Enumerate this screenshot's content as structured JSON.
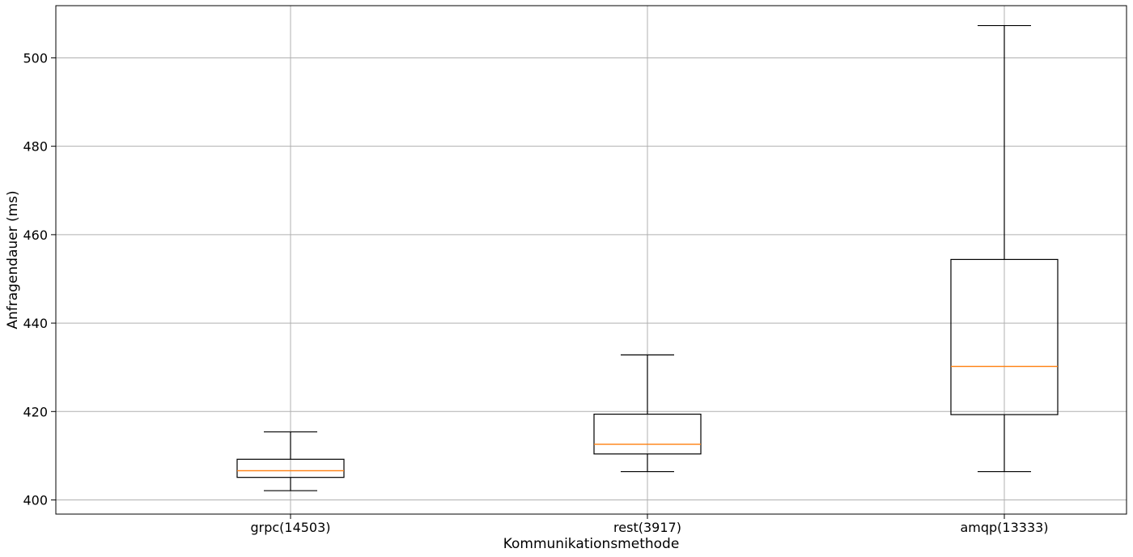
{
  "chart_data": {
    "type": "boxplot",
    "title": "",
    "xlabel": "Kommunikationsmethode",
    "ylabel": "Anfragendauer (ms)",
    "ylim": [
      396.8,
      511.8
    ],
    "yticks": [
      400,
      420,
      440,
      460,
      480,
      500
    ],
    "grid": true,
    "categories": [
      "grpc(14503)",
      "rest(3917)",
      "amqp(13333)"
    ],
    "boxes": [
      {
        "whisker_low": 402.1,
        "q1": 405.1,
        "median": 406.6,
        "q3": 409.2,
        "whisker_high": 415.4
      },
      {
        "whisker_low": 406.4,
        "q1": 410.4,
        "median": 412.6,
        "q3": 419.4,
        "whisker_high": 432.8
      },
      {
        "whisker_low": 406.4,
        "q1": 419.3,
        "median": 430.2,
        "q3": 454.4,
        "whisker_high": 507.3
      }
    ],
    "colors": {
      "box": "#000000",
      "median": "#ff7f0e",
      "grid": "#b0b0b0"
    }
  }
}
